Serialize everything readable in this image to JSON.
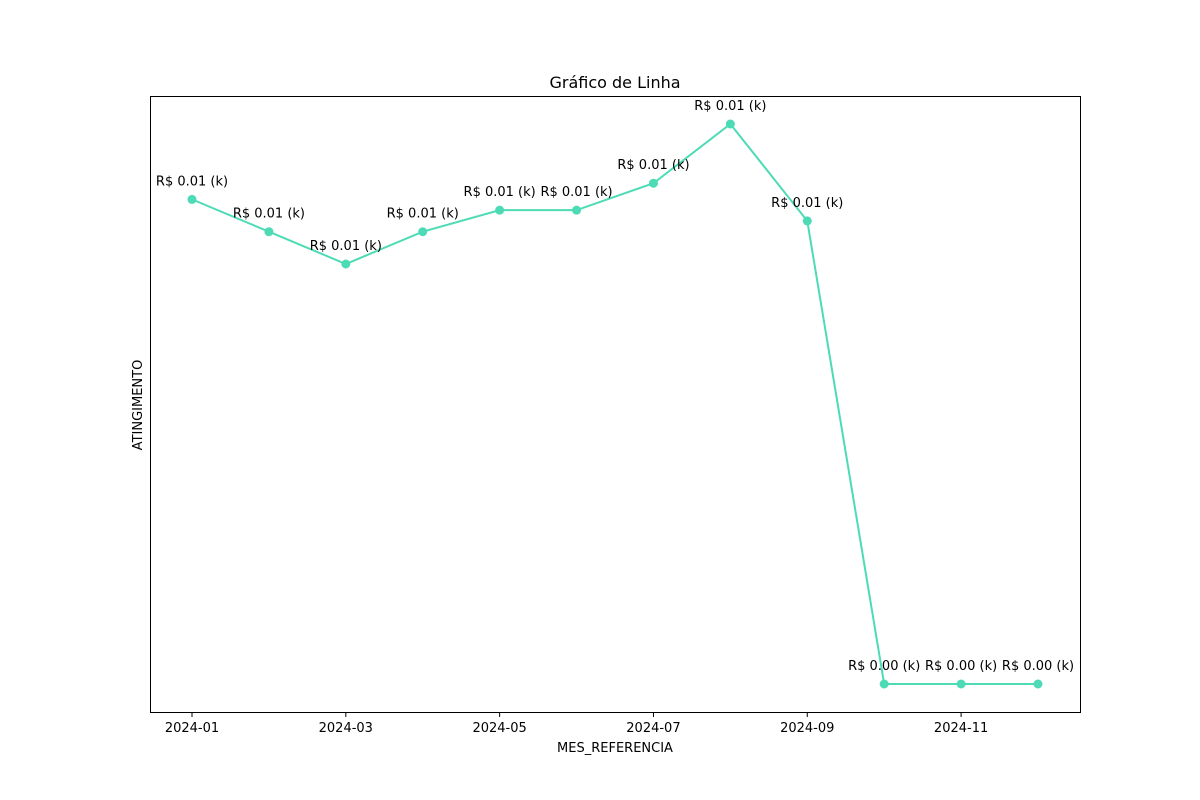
{
  "chart_data": {
    "type": "line",
    "title": "Gráfico de Linha",
    "xlabel": "MES_REFERENCIA",
    "ylabel": "ATINGIMENTO",
    "x": [
      "2024-01",
      "2024-02",
      "2024-03",
      "2024-04",
      "2024-05",
      "2024-06",
      "2024-07",
      "2024-08",
      "2024-09",
      "2024-10",
      "2024-11",
      "2024-12"
    ],
    "x_tick_labels": [
      "2024-01",
      "2024-03",
      "2024-05",
      "2024-07",
      "2024-09",
      "2024-11"
    ],
    "series": [
      {
        "values": [
          0.0115,
          0.0109,
          0.0103,
          0.0109,
          0.0113,
          0.0113,
          0.0118,
          0.0129,
          0.0111,
          0.0025,
          0.0025,
          0.0025
        ],
        "data_labels": [
          "R$ 0.01 (k)",
          "R$ 0.01 (k)",
          "R$ 0.01 (k)",
          "R$ 0.01 (k)",
          "R$ 0.01 (k)",
          "R$ 0.01 (k)",
          "R$ 0.01 (k)",
          "R$ 0.01 (k)",
          "R$ 0.01 (k)",
          "R$ 0.00 (k)",
          "R$ 0.00 (k)",
          "R$ 0.00 (k)"
        ]
      }
    ],
    "y_ticks_shown": false,
    "grid": false,
    "color": "#4ddbb5"
  }
}
